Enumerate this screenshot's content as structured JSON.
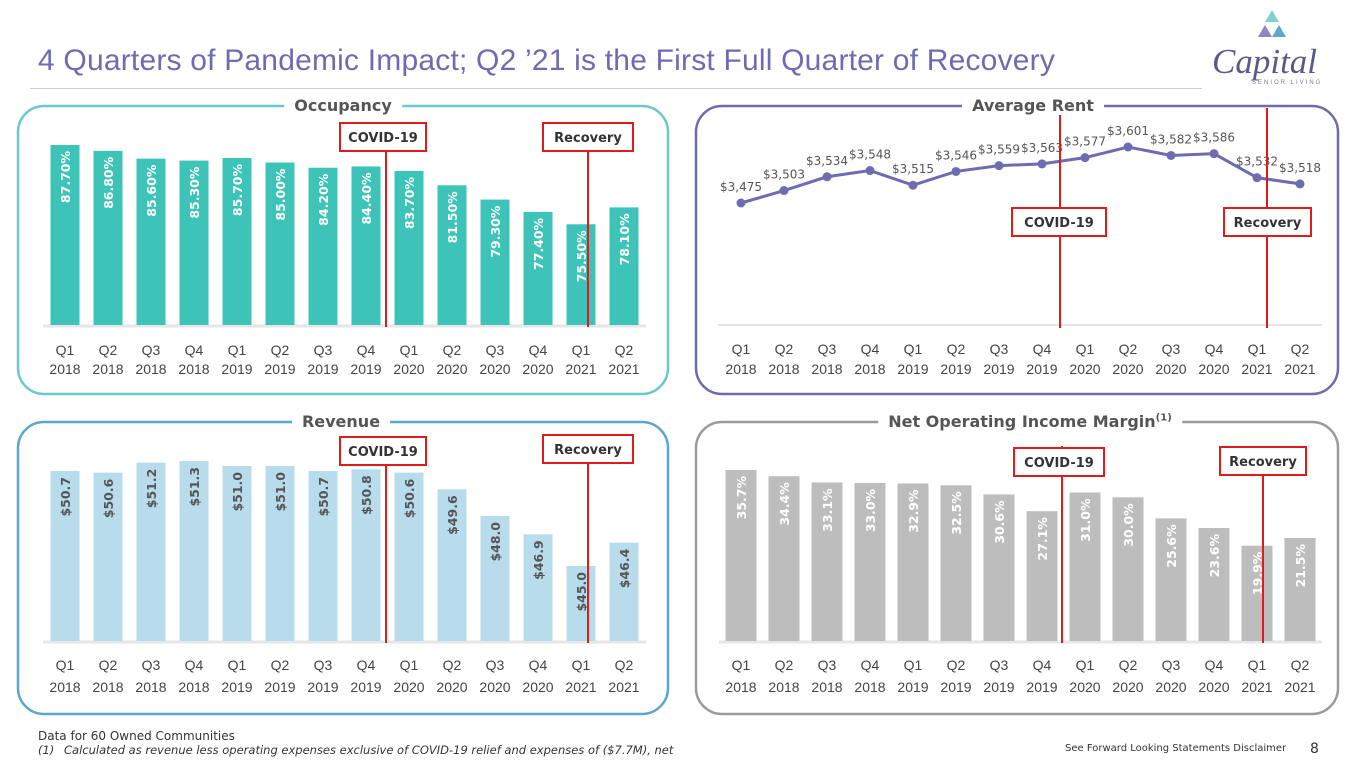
{
  "title": "4 Quarters of Pandemic Impact; Q2 ’21 is the First Full Quarter of Recovery",
  "logo": {
    "name": "Capital",
    "tagline": "SENIOR LIVING",
    "tm": "™"
  },
  "markers": {
    "covid": "COVID-19",
    "recovery": "Recovery"
  },
  "quarters": [
    "Q1",
    "Q2",
    "Q3",
    "Q4",
    "Q1",
    "Q2",
    "Q3",
    "Q4",
    "Q1",
    "Q2",
    "Q3",
    "Q4",
    "Q1",
    "Q2"
  ],
  "years": [
    "2018",
    "2018",
    "2018",
    "2018",
    "2019",
    "2019",
    "2019",
    "2019",
    "2020",
    "2020",
    "2020",
    "2020",
    "2021",
    "2021"
  ],
  "chart_data": [
    {
      "id": "occupancy",
      "type": "bar",
      "title": "Occupancy",
      "categories": [
        "Q1 2018",
        "Q2 2018",
        "Q3 2018",
        "Q4 2018",
        "Q1 2019",
        "Q2 2019",
        "Q3 2019",
        "Q4 2019",
        "Q1 2020",
        "Q2 2020",
        "Q3 2020",
        "Q4 2020",
        "Q1 2021",
        "Q2 2021"
      ],
      "values": [
        87.7,
        86.8,
        85.6,
        85.3,
        85.7,
        85.0,
        84.2,
        84.4,
        83.7,
        81.5,
        79.3,
        77.4,
        75.5,
        78.1
      ],
      "labels": [
        "87.70%",
        "86.80%",
        "85.60%",
        "85.30%",
        "85.70%",
        "85.00%",
        "84.20%",
        "84.40%",
        "83.70%",
        "81.50%",
        "79.30%",
        "77.40%",
        "75.50%",
        "78.10%"
      ],
      "color": "#3ec3b8",
      "frame_color": "#6cc9c8"
    },
    {
      "id": "rent",
      "type": "line",
      "title": "Average Rent",
      "categories": [
        "Q1 2018",
        "Q2 2018",
        "Q3 2018",
        "Q4 2018",
        "Q1 2019",
        "Q2 2019",
        "Q3 2019",
        "Q4 2019",
        "Q1 2020",
        "Q2 2020",
        "Q3 2020",
        "Q4 2020",
        "Q1 2021",
        "Q2 2021"
      ],
      "values": [
        3475,
        3503,
        3534,
        3548,
        3515,
        3546,
        3559,
        3563,
        3577,
        3601,
        3582,
        3586,
        3532,
        3518
      ],
      "labels": [
        "$3,475",
        "$3,503",
        "$3,534",
        "$3,548",
        "$3,515",
        "$3,546",
        "$3,559",
        "$3,563",
        "$3,577",
        "$3,601",
        "$3,582",
        "$3,586",
        "$3,532",
        "$3,518"
      ],
      "color": "#6e6bb0",
      "frame_color": "#6e6bb0"
    },
    {
      "id": "revenue",
      "type": "bar",
      "title": "Revenue",
      "categories": [
        "Q1 2018",
        "Q2 2018",
        "Q3 2018",
        "Q4 2018",
        "Q1 2019",
        "Q2 2019",
        "Q3 2019",
        "Q4 2019",
        "Q1 2020",
        "Q2 2020",
        "Q3 2020",
        "Q4 2020",
        "Q1 2021",
        "Q2 2021"
      ],
      "values": [
        50.7,
        50.6,
        51.2,
        51.3,
        51.0,
        51.0,
        50.7,
        50.8,
        50.6,
        49.6,
        48.0,
        46.9,
        45.0,
        46.4
      ],
      "labels": [
        "$50.7",
        "$50.6",
        "$51.2",
        "$51.3",
        "$51.0",
        "$51.0",
        "$50.7",
        "$50.8",
        "$50.6",
        "$49.6",
        "$48.0",
        "$46.9",
        "$45.0",
        "$46.4"
      ],
      "color": "#b9dcec",
      "frame_color": "#5aa7cf"
    },
    {
      "id": "noi",
      "type": "bar",
      "title": "Net Operating Income Margin",
      "title_sup": "(1)",
      "categories": [
        "Q1 2018",
        "Q2 2018",
        "Q3 2018",
        "Q4 2018",
        "Q1 2019",
        "Q2 2019",
        "Q3 2019",
        "Q4 2019",
        "Q1 2020",
        "Q2 2020",
        "Q3 2020",
        "Q4 2020",
        "Q1 2021",
        "Q2 2021"
      ],
      "values": [
        35.7,
        34.4,
        33.1,
        33.0,
        32.9,
        32.5,
        30.6,
        27.1,
        31.0,
        30.0,
        25.6,
        23.6,
        19.9,
        21.5
      ],
      "labels": [
        "35.7%",
        "34.4%",
        "33.1%",
        "33.0%",
        "32.9%",
        "32.5%",
        "30.6%",
        "27.1%",
        "31.0%",
        "30.0%",
        "25.6%",
        "23.6%",
        "19.9%",
        "21.5%"
      ],
      "color": "#bdbdbd",
      "frame_color": "#9a9a9a"
    }
  ],
  "footnotes": {
    "data_note": "Data for 60 Owned Communities",
    "note1_mark": "(1)",
    "note1": "Calculated as revenue less operating expenses exclusive of COVID-19 relief and expenses of ($7.7M), net"
  },
  "disclaimer": "See Forward Looking Statements Disclaimer",
  "page_number": "8"
}
